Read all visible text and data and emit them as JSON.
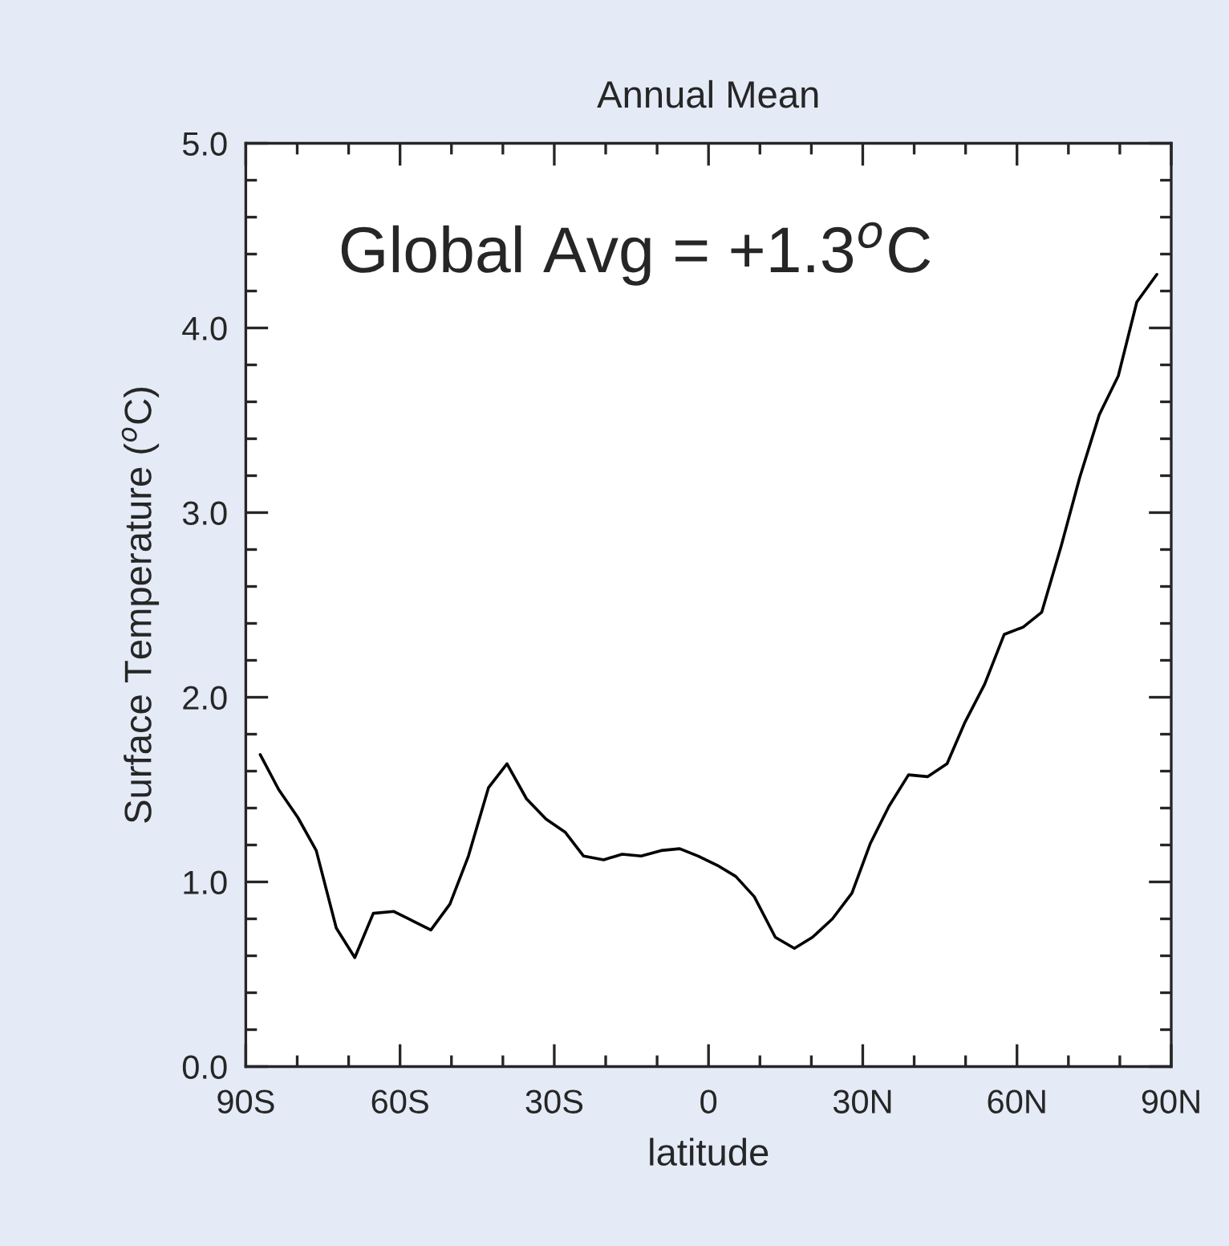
{
  "chart_data": {
    "type": "line",
    "title": "Annual Mean",
    "xlabel": "latitude",
    "ylabel": "Surface Temperature ($^{o}$C)",
    "annotations": [
      "Global Avg = +1.3$^{o}$C"
    ],
    "x": [
      -87.2,
      -83.6,
      -79.9,
      -76.3,
      -72.4,
      -68.8,
      -65.2,
      -61.2,
      -57.6,
      -54.0,
      -50.3,
      -46.7,
      -42.8,
      -39.2,
      -35.4,
      -31.6,
      -27.9,
      -24.3,
      -20.4,
      -16.8,
      -13.1,
      -9.2,
      -5.6,
      -2.0,
      1.7,
      5.3,
      8.9,
      13.0,
      16.7,
      20.2,
      24.1,
      27.9,
      31.5,
      35.1,
      38.9,
      42.6,
      46.4,
      49.8,
      53.7,
      57.5,
      61.2,
      64.8,
      68.6,
      72.2,
      76.0,
      79.7,
      83.3,
      87.2
    ],
    "series": [
      {
        "color": "#000000",
        "values": [
          1.69,
          1.5,
          1.35,
          1.17,
          0.75,
          0.59,
          0.83,
          0.84,
          0.79,
          0.74,
          0.88,
          1.14,
          1.51,
          1.64,
          1.45,
          1.34,
          1.27,
          1.14,
          1.12,
          1.15,
          1.14,
          1.17,
          1.18,
          1.14,
          1.09,
          1.03,
          0.92,
          0.7,
          0.64,
          0.7,
          0.8,
          0.94,
          1.21,
          1.41,
          1.58,
          1.57,
          1.64,
          1.86,
          2.07,
          2.34,
          2.38,
          2.46,
          2.82,
          3.19,
          3.53,
          3.74,
          4.14,
          4.29
        ]
      }
    ],
    "xlim": [
      -90,
      90
    ],
    "xticks": [
      {
        "value": -90,
        "label": "90S"
      },
      {
        "value": -60,
        "label": "60S"
      },
      {
        "value": -30,
        "label": "30S"
      },
      0,
      {
        "value": 30,
        "label": "30N"
      },
      {
        "value": 60,
        "label": "60N"
      },
      {
        "value": 90,
        "label": "90N"
      }
    ],
    "ylim": [
      0,
      5
    ],
    "yticks": [
      {
        "value": 0,
        "label": "0.0"
      },
      {
        "value": 1,
        "label": "1.0"
      },
      {
        "value": 2,
        "label": "2.0"
      },
      {
        "value": 3,
        "label": "3.0"
      },
      {
        "value": 4,
        "label": "4.0"
      },
      {
        "value": 5,
        "label": "5.0"
      }
    ],
    "grid": false,
    "legend": false,
    "marker": "none",
    "line_style": "solid"
  }
}
